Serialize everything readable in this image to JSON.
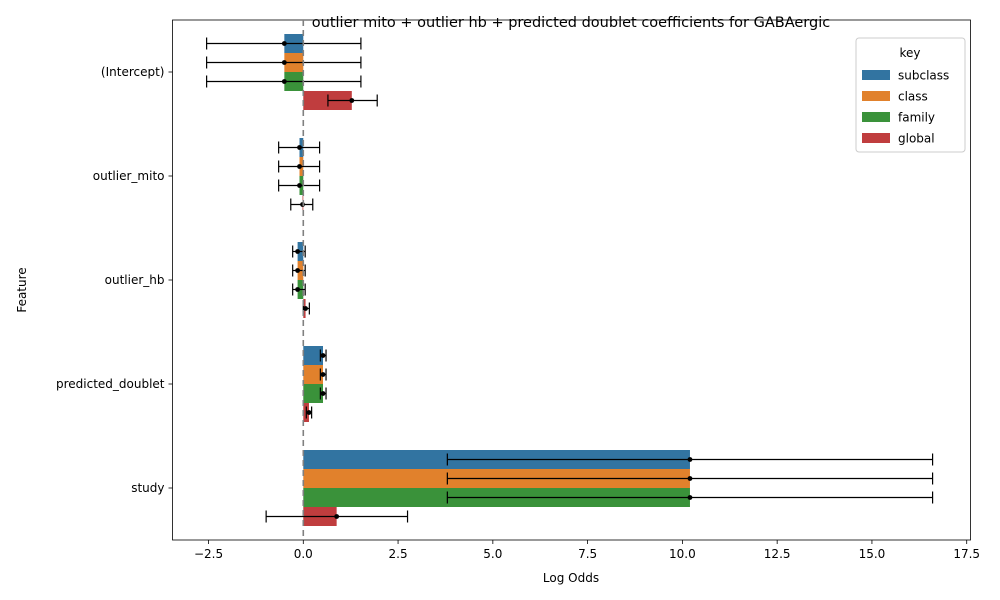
{
  "chart_data": {
    "type": "bar",
    "orientation": "horizontal",
    "title": "outlier mito + outlier hb + predicted doublet coefficients for GABAergic",
    "xlabel": "Log Odds",
    "ylabel": "Feature",
    "xlim": [
      -3.45,
      17.6
    ],
    "xticks": [
      -2.5,
      0.0,
      2.5,
      5.0,
      7.5,
      10.0,
      12.5,
      15.0,
      17.5
    ],
    "xtick_labels": [
      "−2.5",
      "0.0",
      "2.5",
      "5.0",
      "7.5",
      "10.0",
      "12.5",
      "15.0",
      "17.5"
    ],
    "categories": [
      "(Intercept)",
      "outlier_mito",
      "outlier_hb",
      "predicted_doublet",
      "study"
    ],
    "reference_line": 0,
    "legend": {
      "title": "key",
      "placement": "top-right"
    },
    "series": [
      {
        "name": "subclass",
        "color": "#3274a1",
        "values": [
          -0.5,
          -0.1,
          -0.15,
          0.52,
          10.2
        ],
        "ci_low": [
          -2.55,
          -0.65,
          -0.28,
          0.45,
          3.8
        ],
        "ci_high": [
          1.52,
          0.43,
          0.05,
          0.6,
          16.6
        ]
      },
      {
        "name": "class",
        "color": "#e1812c",
        "values": [
          -0.5,
          -0.1,
          -0.15,
          0.52,
          10.2
        ],
        "ci_low": [
          -2.55,
          -0.65,
          -0.28,
          0.45,
          3.8
        ],
        "ci_high": [
          1.52,
          0.43,
          0.05,
          0.6,
          16.6
        ]
      },
      {
        "name": "family",
        "color": "#3a923a",
        "values": [
          -0.5,
          -0.1,
          -0.15,
          0.52,
          10.2
        ],
        "ci_low": [
          -2.55,
          -0.65,
          -0.28,
          0.45,
          3.8
        ],
        "ci_high": [
          1.52,
          0.43,
          0.05,
          0.6,
          16.6
        ]
      },
      {
        "name": "global",
        "color": "#c03d3e",
        "values": [
          1.28,
          -0.02,
          0.06,
          0.15,
          0.88
        ],
        "ci_low": [
          0.65,
          -0.33,
          0.0,
          0.08,
          -0.98
        ],
        "ci_high": [
          1.95,
          0.25,
          0.16,
          0.22,
          2.75
        ]
      }
    ]
  }
}
